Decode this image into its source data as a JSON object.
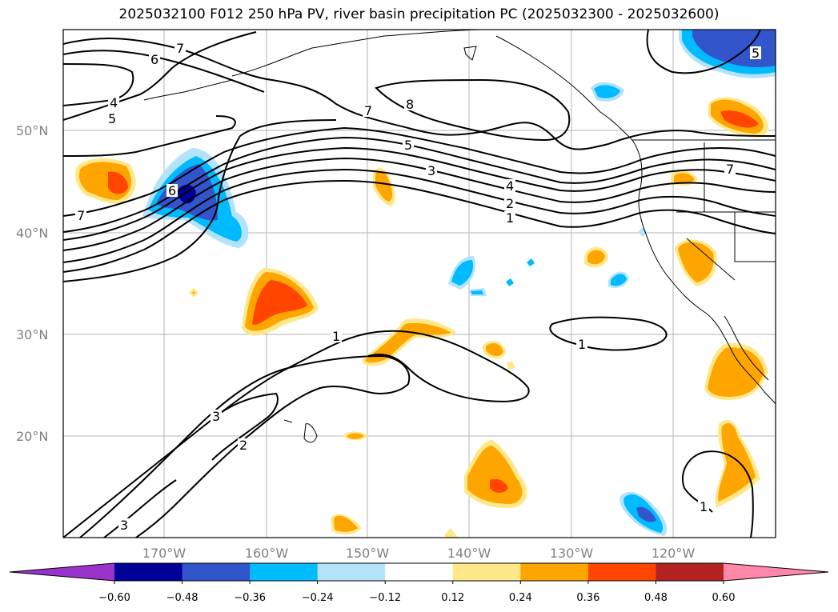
{
  "title": "2025032100 F012 250 hPa PV, river basin precipitation PC (2025032300 - 2025032600)",
  "lat_labels": [
    "50°N",
    "40°N",
    "30°N",
    "20°N"
  ],
  "lon_labels": [
    "170°W",
    "160°W",
    "150°W",
    "140°W",
    "130°W",
    "120°W"
  ],
  "colorbar": {
    "ticks": [
      "−0.60",
      "−0.48",
      "−0.36",
      "−0.24",
      "−0.12",
      "0.12",
      "0.24",
      "0.36",
      "0.48",
      "0.60"
    ],
    "colors": [
      "#9933cc",
      "#000099",
      "#3355cc",
      "#00bbff",
      "#b3e3fa",
      "#ffffff",
      "#ffe88a",
      "#ffa500",
      "#ff4500",
      "#b22222",
      "#ff88aa"
    ]
  },
  "pv_contour_labels": [
    "7",
    "6",
    "4",
    "5",
    "8",
    "7",
    "5",
    "3",
    "4",
    "2",
    "1",
    "6",
    "7",
    "1",
    "1",
    "3",
    "2",
    "3",
    "1",
    "5",
    "7"
  ]
}
